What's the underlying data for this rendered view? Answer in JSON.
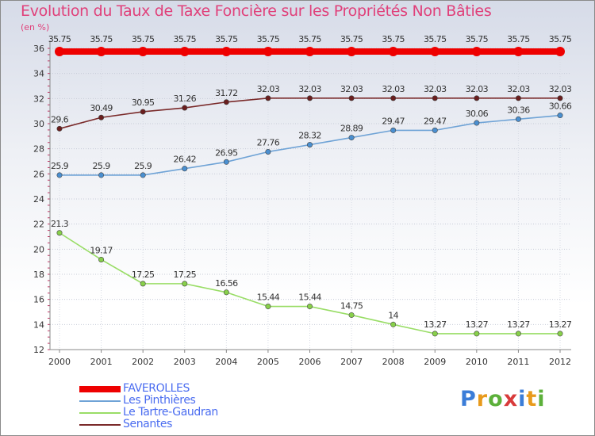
{
  "title": "Evolution du Taux de Taxe Foncière sur les Propriétés Non Bâties",
  "unit_label": "(en %)",
  "logo_text": "Proxiti",
  "chart_data": {
    "type": "line",
    "title": "Evolution du Taux de Taxe Foncière sur les Propriétés Non Bâties",
    "ylabel": "(en %)",
    "xlabel": "",
    "ylim": [
      12,
      36
    ],
    "yticks": [
      12,
      14,
      16,
      18,
      20,
      22,
      24,
      26,
      28,
      30,
      32,
      34,
      36
    ],
    "categories": [
      "2000",
      "2001",
      "2002",
      "2003",
      "2004",
      "2005",
      "2006",
      "2007",
      "2008",
      "2009",
      "2010",
      "2011",
      "2012"
    ],
    "series": [
      {
        "name": "FAVEROLLES",
        "color": "#ee0000",
        "values": [
          35.75,
          35.75,
          35.75,
          35.75,
          35.75,
          35.75,
          35.75,
          35.75,
          35.75,
          35.75,
          35.75,
          35.75,
          35.75
        ],
        "labels": [
          "35.75",
          "35.75",
          "35.75",
          "35.75",
          "35.75",
          "35.75",
          "35.75",
          "35.75",
          "35.75",
          "35.75",
          "35.75",
          "35.75",
          "35.75"
        ]
      },
      {
        "name": "Les Pinthières",
        "color": "#6fa3d6",
        "values": [
          25.9,
          25.9,
          25.9,
          26.42,
          26.95,
          27.76,
          28.32,
          28.89,
          29.47,
          29.47,
          30.06,
          30.36,
          30.66
        ],
        "labels": [
          "25.9",
          "25.9",
          "25.9",
          "26.42",
          "26.95",
          "27.76",
          "28.32",
          "28.89",
          "29.47",
          "29.47",
          "30.06",
          "30.36",
          "30.66"
        ]
      },
      {
        "name": "Le Tartre-Gaudran",
        "color": "#99dd66",
        "values": [
          21.3,
          19.17,
          17.25,
          17.25,
          16.56,
          15.44,
          15.44,
          14.75,
          14,
          13.27,
          13.27,
          13.27,
          13.27
        ],
        "labels": [
          "21.3",
          "19.17",
          "17.25",
          "17.25",
          "16.56",
          "15.44",
          "15.44",
          "14.75",
          "14",
          "13.27",
          "13.27",
          "13.27",
          "13.27"
        ]
      },
      {
        "name": "Senantes",
        "color": "#7a2a2a",
        "values": [
          29.6,
          30.49,
          30.95,
          31.26,
          31.72,
          32.03,
          32.03,
          32.03,
          32.03,
          32.03,
          32.03,
          32.03,
          32.03
        ],
        "labels": [
          "29.6",
          "30.49",
          "30.95",
          "31.26",
          "31.72",
          "32.03",
          "32.03",
          "32.03",
          "32.03",
          "32.03",
          "32.03",
          "32.03",
          "32.03"
        ]
      }
    ],
    "grid": true,
    "legend_position": "bottom-left"
  }
}
